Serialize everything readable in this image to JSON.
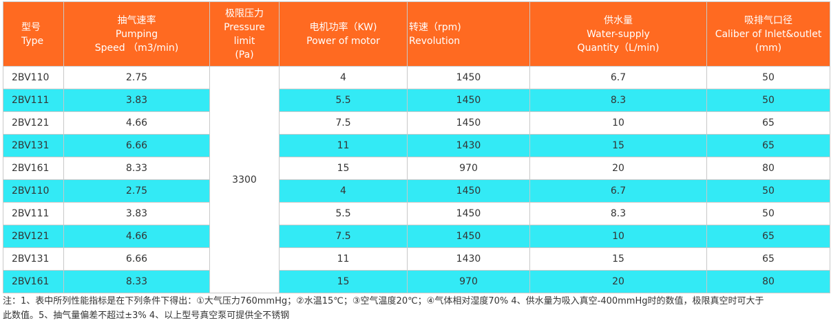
{
  "headers": {
    "type": [
      "型号",
      "Type"
    ],
    "speed": [
      "抽气速率",
      "Pumping",
      "Speed （m3/min)"
    ],
    "pressure": [
      "极限压力",
      "Pressure",
      "limit",
      "(Pa)"
    ],
    "power": [
      "电机功率（KW)",
      "Power of motor"
    ],
    "revolution": [
      "转速（rpm)",
      "Revolution"
    ],
    "water": [
      "供水量",
      "Water-supply",
      "Quantity（L/min)"
    ],
    "caliber": [
      "吸排气口径",
      "Caliber of Inlet&outlet",
      "(mm)"
    ]
  },
  "pressure_value": "3300",
  "rows": [
    {
      "model": "2BV110",
      "speed": "2.75",
      "power": "4",
      "rpm": "1450",
      "water": "6.7",
      "caliber": "50"
    },
    {
      "model": "2BV111",
      "speed": "3.83",
      "power": "5.5",
      "rpm": "1450",
      "water": "8.3",
      "caliber": "50"
    },
    {
      "model": "2BV121",
      "speed": "4.66",
      "power": "7.5",
      "rpm": "1450",
      "water": "10",
      "caliber": "65"
    },
    {
      "model": "2BV131",
      "speed": "6.66",
      "power": "11",
      "rpm": "1430",
      "water": "15",
      "caliber": "65"
    },
    {
      "model": "2BV161",
      "speed": "8.33",
      "power": "15",
      "rpm": "970",
      "water": "20",
      "caliber": "80"
    },
    {
      "model": "2BV110",
      "speed": "2.75",
      "power": "4",
      "rpm": "1450",
      "water": "6.7",
      "caliber": "50"
    },
    {
      "model": "2BV111",
      "speed": "3.83",
      "power": "5.5",
      "rpm": "1450",
      "water": "8.3",
      "caliber": "50"
    },
    {
      "model": "2BV121",
      "speed": "4.66",
      "power": "7.5",
      "rpm": "1450",
      "water": "10",
      "caliber": "65"
    },
    {
      "model": "2BV131",
      "speed": "6.66",
      "power": "11",
      "rpm": "1430",
      "water": "15",
      "caliber": "65"
    },
    {
      "model": "2BV161",
      "speed": "8.33",
      "power": "15",
      "rpm": "970",
      "water": "20",
      "caliber": "80"
    }
  ],
  "note": [
    "注：1、表中所列性能指标是在下列条件下得出：①大气压力760mmHg；②水温15℃；③空气温度20℃；④气体相对湿度70% 4、供水量为吸入真空-400mmHg时的数值，极限真空时可大于",
    "此数值。5、抽气量偏差不超过±3% 4、以上型号真空泵可提供全不锈钢"
  ],
  "colors": {
    "header_bg": "#ff6a21",
    "header_text": "#ffffff",
    "alt_row": "#33eaf5"
  }
}
